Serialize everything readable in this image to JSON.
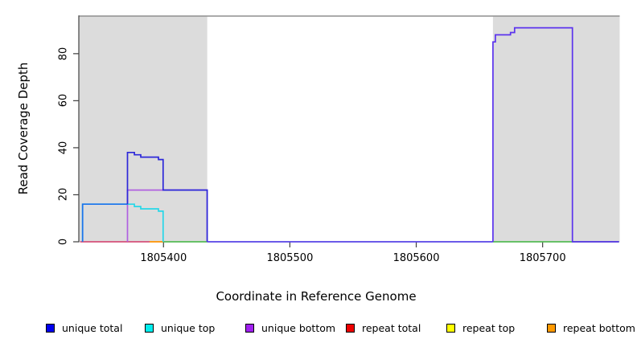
{
  "figure": {
    "xlabel": "Coordinate in Reference Genome",
    "ylabel": "Read Coverage Depth"
  },
  "legend": {
    "items": [
      {
        "label": "unique total",
        "color": "#0000EE"
      },
      {
        "label": "unique top",
        "color": "#00EEEE"
      },
      {
        "label": "unique bottom",
        "color": "#A020F0"
      },
      {
        "label": "repeat total",
        "color": "#EE0000"
      },
      {
        "label": "repeat top",
        "color": "#FFFF00"
      },
      {
        "label": "repeat bottom",
        "color": "#FF9900"
      }
    ]
  },
  "chart_data": {
    "type": "line",
    "subtype": "step-coverage",
    "title": "",
    "xlabel": "Coordinate in Reference Genome",
    "ylabel": "Read Coverage Depth",
    "xlim": [
      1805333,
      1805761
    ],
    "ylim": [
      0,
      96
    ],
    "x_ticks": [
      1805400,
      1805500,
      1805600,
      1805700
    ],
    "y_ticks": [
      0,
      20,
      40,
      60,
      80
    ],
    "grid": false,
    "legend_position": "bottom",
    "background_color": "#FFFFFF",
    "shaded_color": "#DCDCDC",
    "shaded_regions": [
      {
        "from": 1805333,
        "to": 1805434.6
      },
      {
        "from": 1805660.7,
        "to": 1805761
      }
    ],
    "series": [
      {
        "name": "repeat total baseline",
        "color": "#D6507A",
        "points": [
          [
            1805334,
            0
          ],
          [
            1805389,
            0
          ]
        ]
      },
      {
        "name": "repeat bottom baseline",
        "color": "#FF9300",
        "points": [
          [
            1805389,
            0
          ],
          [
            1805399.7,
            0
          ]
        ]
      },
      {
        "name": "baseline overlap left",
        "color": "#55BB55",
        "points": [
          [
            1805399.7,
            0
          ],
          [
            1805434.6,
            0
          ]
        ]
      },
      {
        "name": "baseline overlap right",
        "color": "#55BB55",
        "points": [
          [
            1805660.7,
            0
          ],
          [
            1805760.5,
            0
          ]
        ]
      },
      {
        "name": "unique bottom",
        "color": "#B060E0",
        "points": [
          [
            1805371.5,
            0
          ],
          [
            1805371.5,
            22
          ],
          [
            1805434.6,
            22
          ],
          [
            1805434.6,
            0
          ]
        ]
      },
      {
        "name": "unique top",
        "color": "#26D7E8",
        "points": [
          [
            1805336,
            0
          ],
          [
            1805336,
            16
          ],
          [
            1805377,
            16
          ],
          [
            1805377,
            15
          ],
          [
            1805382,
            15
          ],
          [
            1805382,
            14
          ],
          [
            1805396,
            14
          ],
          [
            1805396,
            13
          ],
          [
            1805399.7,
            13
          ],
          [
            1805399.7,
            0
          ]
        ]
      },
      {
        "name": "unique total over unique top",
        "color": "#1C74EC",
        "points": [
          [
            1805336,
            0
          ],
          [
            1805336,
            16
          ],
          [
            1805371.5,
            16
          ]
        ]
      },
      {
        "name": "unique total",
        "color": "#2D28D9",
        "points": [
          [
            1805371.5,
            16
          ],
          [
            1805371.5,
            38
          ],
          [
            1805377,
            38
          ],
          [
            1805377,
            37
          ],
          [
            1805382,
            37
          ],
          [
            1805382,
            36
          ],
          [
            1805396,
            36
          ],
          [
            1805396,
            35
          ],
          [
            1805399.7,
            35
          ],
          [
            1805399.7,
            22
          ],
          [
            1805434.6,
            22
          ],
          [
            1805434.6,
            0
          ]
        ]
      },
      {
        "name": "total baseline gap",
        "color": "#5743E6",
        "points": [
          [
            1805434.6,
            0
          ],
          [
            1805660.7,
            0
          ]
        ]
      },
      {
        "name": "unique total and bottom block",
        "color": "#5B33EE",
        "points": [
          [
            1805660.7,
            0
          ],
          [
            1805660.7,
            85
          ],
          [
            1805662.6,
            85
          ],
          [
            1805662.6,
            88
          ],
          [
            1805674.6,
            88
          ],
          [
            1805674.6,
            89
          ],
          [
            1805677.8,
            89
          ],
          [
            1805677.8,
            91
          ],
          [
            1805723.6,
            91
          ],
          [
            1805723.6,
            0
          ],
          [
            1805760.5,
            0
          ]
        ]
      }
    ]
  }
}
